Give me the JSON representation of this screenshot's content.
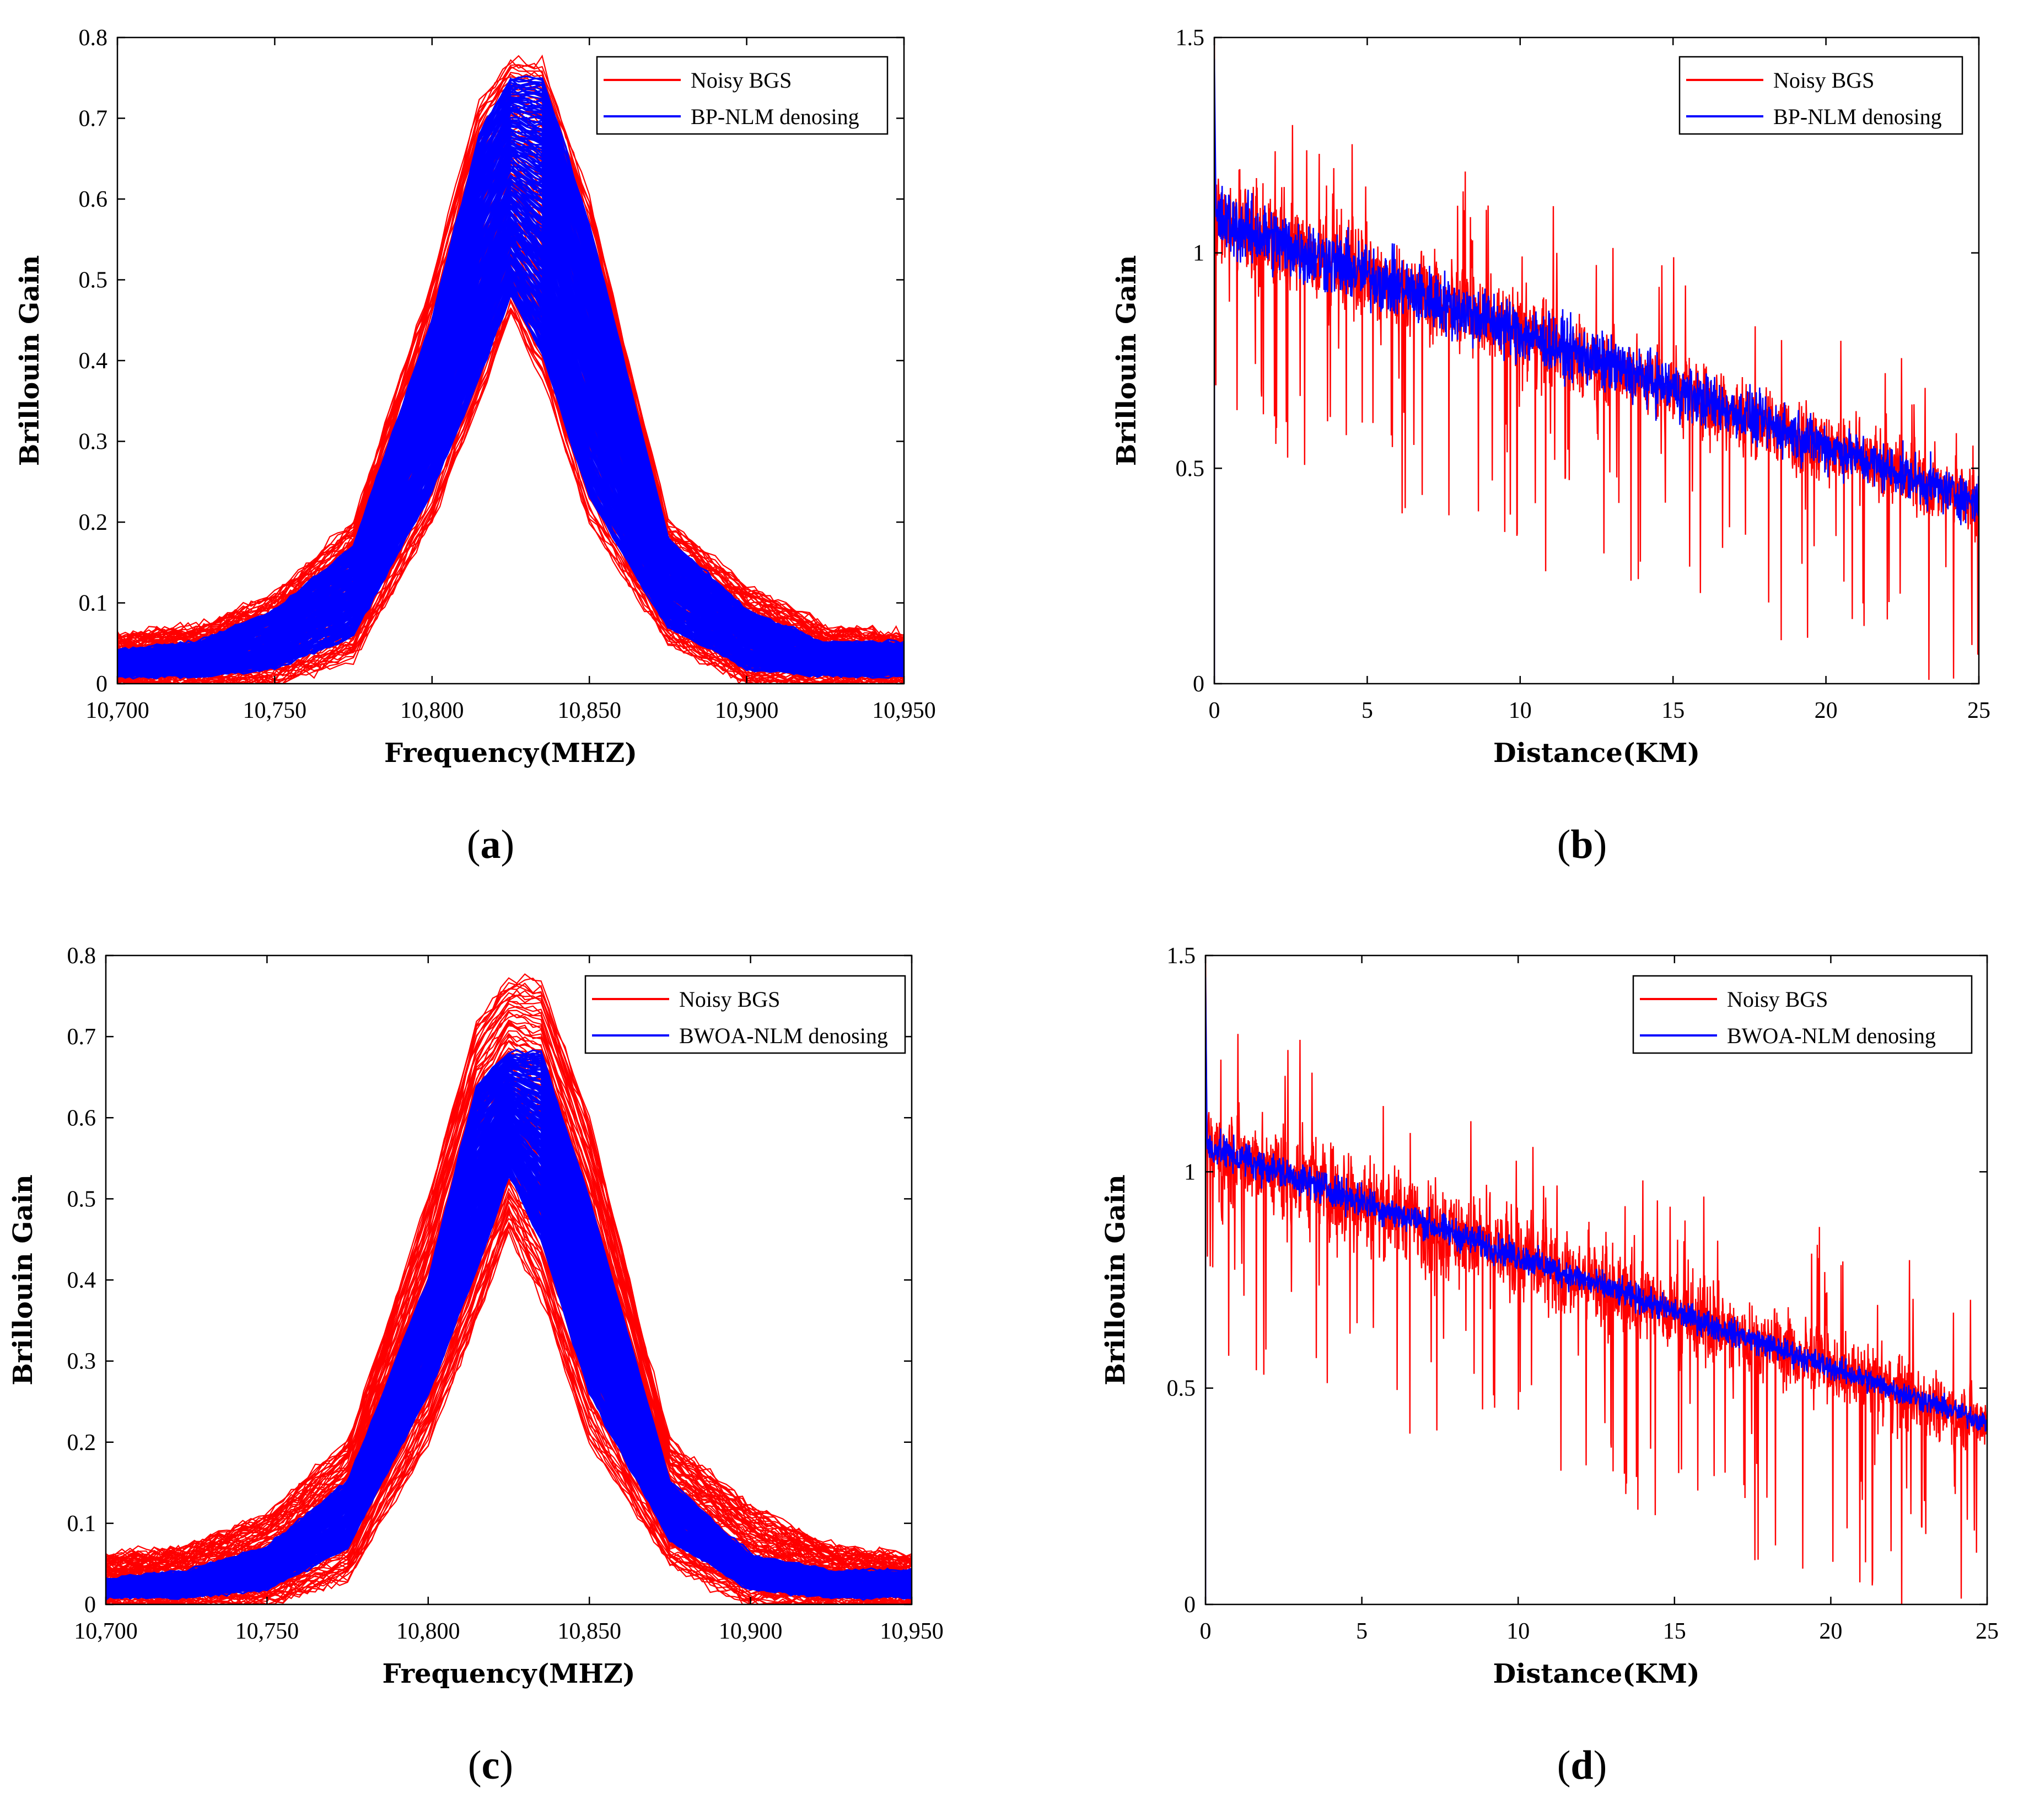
{
  "figure": {
    "panels": [
      {
        "id": "a",
        "label_open": "(",
        "label_letter": "a",
        "label_close": ")"
      },
      {
        "id": "b",
        "label_open": "(",
        "label_letter": "b",
        "label_close": ")"
      },
      {
        "id": "c",
        "label_open": "(",
        "label_letter": "c",
        "label_close": ")"
      },
      {
        "id": "d",
        "label_open": "(",
        "label_letter": "d",
        "label_close": ")"
      }
    ]
  },
  "colors": {
    "noisy": "#ff0000",
    "denoised": "#0000ff",
    "axis": "#000000"
  },
  "chart_data": [
    {
      "id": "a",
      "type": "line",
      "xlabel": "Frequency(MHZ)",
      "ylabel": "Brillouin Gain",
      "xlim": [
        10700,
        10950
      ],
      "ylim": [
        0,
        0.8
      ],
      "xticks": [
        10700,
        10750,
        10800,
        10850,
        10900,
        10950
      ],
      "xtick_labels": [
        "10,700",
        "10,750",
        "10,800",
        "10,850",
        "10,900",
        "10,950"
      ],
      "yticks": [
        0,
        0.1,
        0.2,
        0.3,
        0.4,
        0.5,
        0.6,
        0.7,
        0.8
      ],
      "ytick_labels": [
        "0",
        "0.1",
        "0.2",
        "0.3",
        "0.4",
        "0.5",
        "0.6",
        "0.7",
        "0.8"
      ],
      "legend": {
        "position": "top-right",
        "entries": [
          "Noisy BGS",
          "BP-NLM denosing"
        ]
      },
      "series": [
        {
          "name": "Noisy BGS",
          "color": "#ff0000",
          "x": [
            10700,
            10725,
            10750,
            10775,
            10800,
            10815,
            10825,
            10835,
            10850,
            10875,
            10900,
            10925,
            10950
          ],
          "upper": [
            0.06,
            0.07,
            0.11,
            0.2,
            0.5,
            0.72,
            0.77,
            0.77,
            0.6,
            0.2,
            0.12,
            0.07,
            0.06
          ],
          "lower": [
            0.0,
            0.0,
            0.0,
            0.03,
            0.2,
            0.35,
            0.46,
            0.38,
            0.2,
            0.05,
            0.0,
            0.0,
            0.0
          ]
        },
        {
          "name": "BP-NLM denosing",
          "color": "#0000ff",
          "x": [
            10700,
            10725,
            10750,
            10775,
            10800,
            10815,
            10825,
            10835,
            10850,
            10875,
            10900,
            10925,
            10950
          ],
          "upper": [
            0.04,
            0.05,
            0.09,
            0.17,
            0.45,
            0.68,
            0.75,
            0.75,
            0.57,
            0.18,
            0.09,
            0.05,
            0.05
          ],
          "lower": [
            0.01,
            0.01,
            0.02,
            0.06,
            0.24,
            0.38,
            0.48,
            0.41,
            0.23,
            0.07,
            0.02,
            0.01,
            0.01
          ]
        }
      ]
    },
    {
      "id": "b",
      "type": "line",
      "xlabel": "Distance(KM)",
      "ylabel": "Brillouin Gain",
      "xlim": [
        0,
        25
      ],
      "ylim": [
        0,
        1.5
      ],
      "xticks": [
        0,
        5,
        10,
        15,
        20,
        25
      ],
      "xtick_labels": [
        "0",
        "5",
        "10",
        "15",
        "20",
        "25"
      ],
      "yticks": [
        0,
        0.5,
        1,
        1.5
      ],
      "ytick_labels": [
        "0",
        "0.5",
        "1",
        "1.5"
      ],
      "legend": {
        "position": "top-right",
        "entries": [
          "Noisy BGS",
          "BP-NLM denosing"
        ]
      },
      "series": [
        {
          "name": "Noisy BGS",
          "color": "#ff0000",
          "trend_start": 1.08,
          "trend_end": 0.42,
          "noise": 0.17
        },
        {
          "name": "BP-NLM denosing",
          "color": "#0000ff",
          "trend_start": 1.08,
          "trend_end": 0.42,
          "noise": 0.12
        }
      ]
    },
    {
      "id": "c",
      "type": "line",
      "xlabel": "Frequency(MHZ)",
      "ylabel": "Brillouin Gain",
      "xlim": [
        10700,
        10950
      ],
      "ylim": [
        0,
        0.8
      ],
      "xticks": [
        10700,
        10750,
        10800,
        10850,
        10900,
        10950
      ],
      "xtick_labels": [
        "10,700",
        "10,750",
        "10,800",
        "10,850",
        "10,900",
        "10,950"
      ],
      "yticks": [
        0,
        0.1,
        0.2,
        0.3,
        0.4,
        0.5,
        0.6,
        0.7,
        0.8
      ],
      "ytick_labels": [
        "0",
        "0.1",
        "0.2",
        "0.3",
        "0.4",
        "0.5",
        "0.6",
        "0.7",
        "0.8"
      ],
      "legend": {
        "position": "top-right",
        "entries": [
          "Noisy BGS",
          "BWOA-NLM denosing"
        ]
      },
      "series": [
        {
          "name": "Noisy BGS",
          "color": "#ff0000",
          "x": [
            10700,
            10725,
            10750,
            10775,
            10800,
            10815,
            10825,
            10835,
            10850,
            10875,
            10900,
            10925,
            10950
          ],
          "upper": [
            0.06,
            0.07,
            0.11,
            0.2,
            0.5,
            0.72,
            0.77,
            0.77,
            0.6,
            0.2,
            0.12,
            0.07,
            0.06
          ],
          "lower": [
            0.0,
            0.0,
            0.0,
            0.03,
            0.2,
            0.35,
            0.46,
            0.38,
            0.2,
            0.05,
            0.0,
            0.0,
            0.0
          ]
        },
        {
          "name": "BWOA-NLM denosing",
          "color": "#0000ff",
          "x": [
            10700,
            10725,
            10750,
            10775,
            10800,
            10815,
            10825,
            10835,
            10850,
            10875,
            10900,
            10925,
            10950
          ],
          "upper": [
            0.03,
            0.04,
            0.07,
            0.15,
            0.4,
            0.64,
            0.68,
            0.68,
            0.5,
            0.15,
            0.06,
            0.04,
            0.04
          ],
          "lower": [
            0.01,
            0.01,
            0.02,
            0.07,
            0.26,
            0.41,
            0.53,
            0.45,
            0.26,
            0.08,
            0.02,
            0.01,
            0.01
          ]
        }
      ]
    },
    {
      "id": "d",
      "type": "line",
      "xlabel": "Distance(KM)",
      "ylabel": "Brillouin Gain",
      "xlim": [
        0,
        25
      ],
      "ylim": [
        0,
        1.5
      ],
      "xticks": [
        0,
        5,
        10,
        15,
        20,
        25
      ],
      "xtick_labels": [
        "0",
        "5",
        "10",
        "15",
        "20",
        "25"
      ],
      "yticks": [
        0,
        0.5,
        1,
        1.5
      ],
      "ytick_labels": [
        "0",
        "0.5",
        "1",
        "1.5"
      ],
      "legend": {
        "position": "top-right",
        "entries": [
          "Noisy BGS",
          "BWOA-NLM denosing"
        ]
      },
      "series": [
        {
          "name": "Noisy BGS",
          "color": "#ff0000",
          "trend_start": 1.06,
          "trend_end": 0.42,
          "noise": 0.18
        },
        {
          "name": "BWOA-NLM denosing",
          "color": "#0000ff",
          "trend_start": 1.06,
          "trend_end": 0.42,
          "noise": 0.06
        }
      ]
    }
  ]
}
